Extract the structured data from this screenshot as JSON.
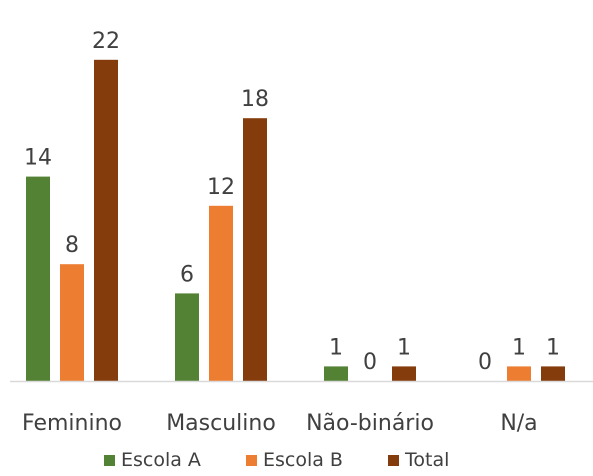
{
  "chart_data": {
    "type": "bar",
    "title": "",
    "xlabel": "",
    "ylabel": "",
    "ylim": [
      0,
      22
    ],
    "grid": false,
    "legend_position": "bottom",
    "categories": [
      "Feminino",
      "Masculino",
      "Não-binário",
      "N/a"
    ],
    "series": [
      {
        "name": "Escola A",
        "color": "#548235",
        "values": [
          14,
          6,
          1,
          0
        ]
      },
      {
        "name": "Escola B",
        "color": "#ED7D31",
        "values": [
          8,
          12,
          0,
          1
        ]
      },
      {
        "name": "Total",
        "color": "#843C0C",
        "values": [
          22,
          18,
          1,
          1
        ]
      }
    ]
  }
}
